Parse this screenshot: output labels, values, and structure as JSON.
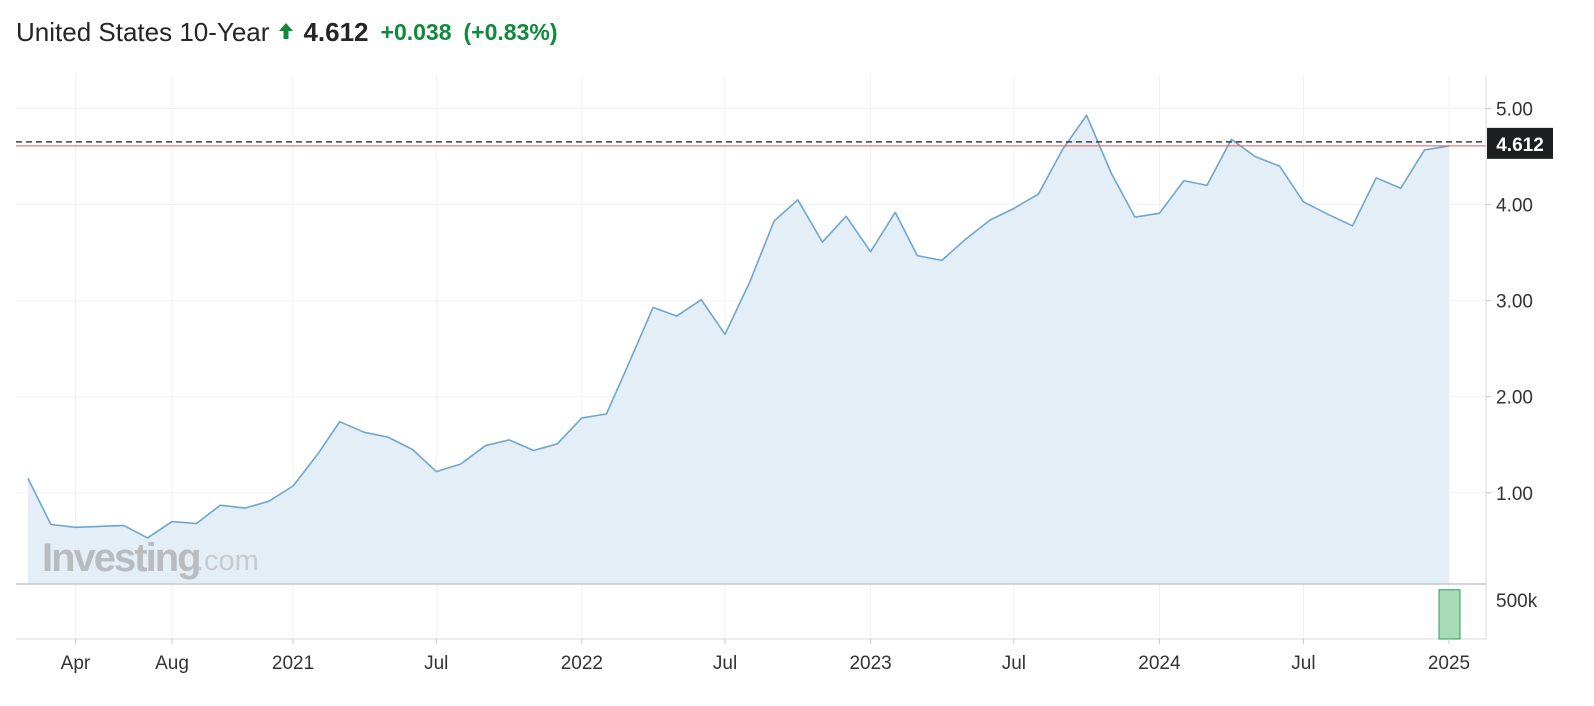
{
  "header": {
    "title": "United States 10-Year",
    "direction_icon": "arrow-up-icon",
    "last": "4.612",
    "change": "+0.038",
    "change_pct": "(+0.83%)",
    "color_up": "#0e8a3b"
  },
  "watermark": {
    "brand": "Investing",
    "suffix": ".com"
  },
  "colors": {
    "line": "#6ea6d0",
    "area": "#e4eef6",
    "grid": "#f0f1f2",
    "price_line": "#e05a5a",
    "price_box": "#1e1f21",
    "volume_bar": "#a6dbb6",
    "volume_bar_edge": "#2f9e57"
  },
  "chart_data": {
    "type": "area",
    "x": [
      "2020-02-01",
      "2020-03-01",
      "2020-04-01",
      "2020-05-01",
      "2020-06-01",
      "2020-07-01",
      "2020-08-01",
      "2020-09-01",
      "2020-10-01",
      "2020-11-01",
      "2020-12-01",
      "2021-01-01",
      "2021-02-01",
      "2021-03-01",
      "2021-04-01",
      "2021-05-01",
      "2021-06-01",
      "2021-07-01",
      "2021-08-01",
      "2021-09-01",
      "2021-10-01",
      "2021-11-01",
      "2021-12-01",
      "2022-01-01",
      "2022-02-01",
      "2022-03-01",
      "2022-04-01",
      "2022-05-01",
      "2022-06-01",
      "2022-07-01",
      "2022-08-01",
      "2022-09-01",
      "2022-10-01",
      "2022-11-01",
      "2022-12-01",
      "2023-01-01",
      "2023-02-01",
      "2023-03-01",
      "2023-04-01",
      "2023-05-01",
      "2023-06-01",
      "2023-07-01",
      "2023-08-01",
      "2023-09-01",
      "2023-10-01",
      "2023-11-01",
      "2023-12-01",
      "2024-01-01",
      "2024-02-01",
      "2024-03-01",
      "2024-04-01",
      "2024-05-01",
      "2024-06-01",
      "2024-07-01",
      "2024-08-01",
      "2024-09-01",
      "2024-10-01",
      "2024-11-01",
      "2024-12-01",
      "2025-01-01"
    ],
    "series": [
      {
        "values": [
          1.15,
          0.67,
          0.64,
          0.65,
          0.66,
          0.53,
          0.7,
          0.68,
          0.87,
          0.84,
          0.91,
          1.07,
          1.4,
          1.74,
          1.63,
          1.58,
          1.45,
          1.22,
          1.3,
          1.49,
          1.55,
          1.44,
          1.51,
          1.78,
          1.82,
          2.34,
          2.93,
          2.84,
          3.01,
          2.65,
          3.19,
          3.83,
          4.05,
          3.61,
          3.88,
          3.51,
          3.92,
          3.47,
          3.42,
          3.64,
          3.84,
          3.96,
          4.11,
          4.58,
          4.93,
          4.33,
          3.87,
          3.91,
          4.25,
          4.2,
          4.68,
          4.5,
          4.4,
          4.03,
          3.9,
          3.78,
          4.28,
          4.17,
          4.57,
          4.612
        ]
      }
    ],
    "volume": {
      "values": [
        0,
        0,
        0,
        0,
        0,
        0,
        0,
        0,
        0,
        0,
        0,
        0,
        0,
        0,
        0,
        0,
        0,
        0,
        0,
        0,
        0,
        0,
        0,
        0,
        0,
        0,
        0,
        0,
        0,
        0,
        0,
        0,
        0,
        0,
        0,
        0,
        0,
        0,
        0,
        0,
        0,
        0,
        0,
        0,
        0,
        0,
        0,
        0,
        0,
        0,
        0,
        0,
        0,
        0,
        0,
        0,
        0,
        0,
        0,
        650000
      ],
      "ytick": "500k"
    },
    "xticks": [
      {
        "label": "Apr",
        "date": "2020-04-01"
      },
      {
        "label": "Aug",
        "date": "2020-08-01"
      },
      {
        "label": "2021",
        "date": "2021-01-01"
      },
      {
        "label": "Jul",
        "date": "2021-07-01"
      },
      {
        "label": "2022",
        "date": "2022-01-01"
      },
      {
        "label": "Jul",
        "date": "2022-07-01"
      },
      {
        "label": "2023",
        "date": "2023-01-01"
      },
      {
        "label": "Jul",
        "date": "2023-07-01"
      },
      {
        "label": "2024",
        "date": "2024-01-01"
      },
      {
        "label": "Jul",
        "date": "2024-07-01"
      },
      {
        "label": "2025",
        "date": "2025-01-01"
      }
    ],
    "yticks": [
      1.0,
      2.0,
      3.0,
      4.0,
      5.0
    ],
    "ytick_labels": [
      "1.00",
      "2.00",
      "3.00",
      "4.00",
      "5.00"
    ],
    "ylim": [
      0.05,
      5.35
    ],
    "current_price": 4.612,
    "current_price_label": "4.612",
    "grid": true,
    "title": "",
    "xlabel": "",
    "ylabel": ""
  }
}
